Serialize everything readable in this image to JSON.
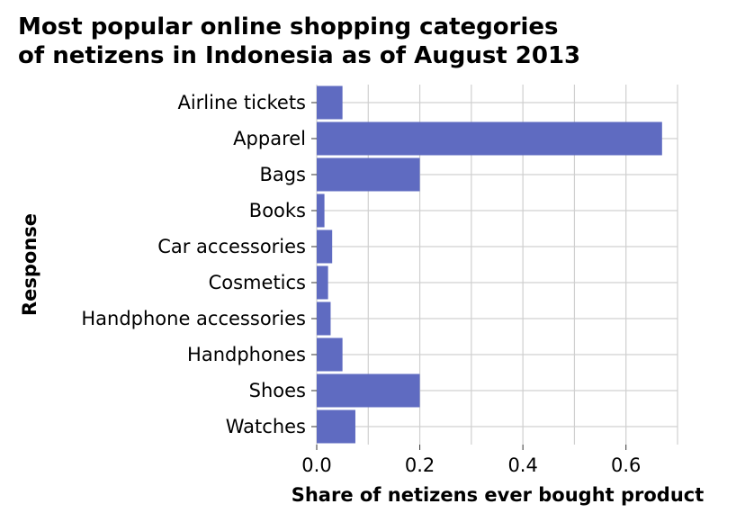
{
  "chart_data": {
    "type": "bar",
    "orientation": "horizontal",
    "title_lines": [
      "Most popular online shopping categories",
      "of netizens in Indonesia as of August 2013"
    ],
    "xlabel": "Share of netizens ever bought product",
    "ylabel": "Response",
    "categories": [
      "Airline tickets",
      "Apparel",
      "Bags",
      "Books",
      "Car accessories",
      "Cosmetics",
      "Handphone accessories",
      "Handphones",
      "Shoes",
      "Watches"
    ],
    "values": [
      0.05,
      0.67,
      0.2,
      0.015,
      0.03,
      0.022,
      0.027,
      0.05,
      0.2,
      0.075
    ],
    "xlim": [
      0,
      0.7
    ],
    "xticks": [
      0.0,
      0.2,
      0.4,
      0.6
    ],
    "xtick_labels": [
      "0.0",
      "0.2",
      "0.4",
      "0.6"
    ],
    "grid": true,
    "bar_color": "#5f6bc1"
  }
}
